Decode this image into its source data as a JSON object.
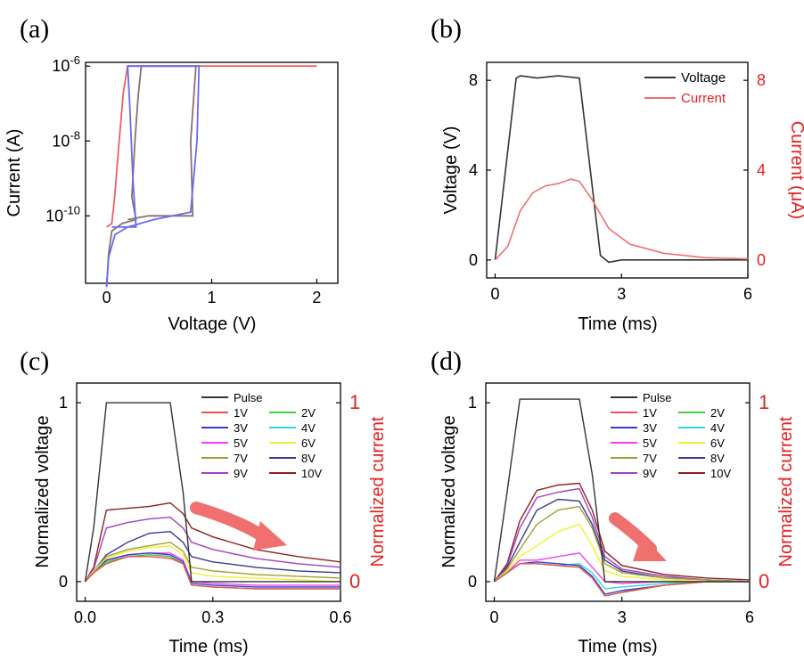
{
  "chart_data": [
    {
      "id": "a",
      "panel_label": "(a)",
      "type": "line",
      "xlabel": "Voltage (V)",
      "ylabel": "Current (A)",
      "xlim": [
        -0.2,
        2.2
      ],
      "ylim_log10": [
        -11.8,
        -5.9
      ],
      "yscale": "log",
      "xticks": [
        "0",
        "1",
        "2"
      ],
      "yticks": [
        {
          "base": "10",
          "exp": "-6",
          "log": -6
        },
        {
          "base": "10",
          "exp": "-8",
          "log": -8
        },
        {
          "base": "10",
          "exp": "-10",
          "log": -10
        }
      ],
      "series": [
        {
          "color": "#f06060",
          "points": [
            [
              0.0,
              -10.3
            ],
            [
              0.05,
              -10.2
            ],
            [
              0.08,
              -9.4
            ],
            [
              0.12,
              -8.0
            ],
            [
              0.16,
              -6.7
            ],
            [
              0.2,
              -6.0
            ],
            [
              2.0,
              -6.0
            ]
          ]
        },
        {
          "color": "#8a7070",
          "points": [
            [
              0.0,
              -11.9
            ],
            [
              0.02,
              -11.0
            ],
            [
              0.05,
              -10.4
            ],
            [
              0.15,
              -10.2
            ],
            [
              0.28,
              -10.1
            ],
            [
              0.24,
              -9.5
            ],
            [
              0.27,
              -8.0
            ],
            [
              0.3,
              -6.8
            ],
            [
              0.33,
              -6.0
            ],
            [
              0.85,
              -6.0
            ],
            [
              0.8,
              -8.0
            ],
            [
              0.82,
              -10.0
            ],
            [
              0.4,
              -10.0
            ],
            [
              0.2,
              -10.1
            ]
          ]
        },
        {
          "color": "#6a6af0",
          "points": [
            [
              0.0,
              -11.9
            ],
            [
              0.02,
              -11.1
            ],
            [
              0.08,
              -10.5
            ],
            [
              0.2,
              -10.3
            ],
            [
              0.45,
              -10.1
            ],
            [
              0.8,
              -9.9
            ],
            [
              0.86,
              -8.0
            ],
            [
              0.88,
              -6.0
            ],
            [
              0.2,
              -6.0
            ],
            [
              0.22,
              -7.0
            ],
            [
              0.25,
              -9.0
            ],
            [
              0.28,
              -10.3
            ],
            [
              0.05,
              -10.3
            ]
          ]
        }
      ]
    },
    {
      "id": "b",
      "panel_label": "(b)",
      "type": "line",
      "xlabel": "Time (ms)",
      "ylabel": "Voltage (V)",
      "ylabel_right": "Current (μA)",
      "xlim": [
        -0.2,
        6.0
      ],
      "ylim": [
        -0.8,
        8.8
      ],
      "xticks": [
        "0",
        "3",
        "6"
      ],
      "yticks": [
        "0",
        "4",
        "8"
      ],
      "yticks_right": [
        "0",
        "4",
        "8"
      ],
      "series": [
        {
          "name": "Voltage",
          "color": "#333333",
          "x": [
            0,
            0.5,
            0.6,
            1.0,
            1.5,
            2.0,
            2.5,
            2.7,
            3.0,
            4.0,
            5.0,
            6.0
          ],
          "y": [
            0,
            8.1,
            8.2,
            8.1,
            8.2,
            8.1,
            0.2,
            -0.1,
            0,
            0,
            0,
            0
          ]
        },
        {
          "name": "Current",
          "color": "#f07070",
          "x": [
            0,
            0.3,
            0.6,
            0.9,
            1.2,
            1.5,
            1.8,
            2.0,
            2.3,
            2.7,
            3.2,
            4.0,
            5.0,
            6.0
          ],
          "y": [
            0,
            0.6,
            2.2,
            3.0,
            3.3,
            3.4,
            3.6,
            3.5,
            2.7,
            1.4,
            0.7,
            0.3,
            0.1,
            0.05
          ]
        }
      ]
    },
    {
      "id": "c",
      "panel_label": "(c)",
      "type": "line",
      "xlabel": "Time (ms)",
      "ylabel": "Normalized voltage",
      "ylabel_right": "Normalized current",
      "xlim": [
        -0.02,
        0.6
      ],
      "ylim": [
        -0.11,
        1.11
      ],
      "xticks": [
        "0.0",
        "0.3",
        "0.6"
      ],
      "yticks": [
        "0",
        "1"
      ],
      "yticks_right": [
        "0",
        "1"
      ],
      "x": [
        0.0,
        0.02,
        0.05,
        0.1,
        0.15,
        0.2,
        0.23,
        0.25,
        0.3,
        0.4,
        0.5,
        0.6
      ],
      "series": [
        {
          "name": "Pulse",
          "color": "#333333",
          "y": [
            0,
            0.3,
            1.0,
            1.0,
            1.0,
            1.0,
            0.5,
            0,
            0,
            0,
            0,
            0
          ]
        },
        {
          "name": "1V",
          "color": "#f05050",
          "y": [
            0,
            0.05,
            0.1,
            0.14,
            0.14,
            0.13,
            0.1,
            -0.02,
            -0.03,
            -0.04,
            -0.04,
            -0.04
          ]
        },
        {
          "name": "2V",
          "color": "#40d040",
          "y": [
            0,
            0.05,
            0.11,
            0.14,
            0.15,
            0.14,
            0.1,
            -0.02,
            -0.03,
            -0.04,
            -0.04,
            -0.04
          ]
        },
        {
          "name": "3V",
          "color": "#3a3ad0",
          "y": [
            0,
            0.05,
            0.12,
            0.15,
            0.16,
            0.15,
            0.11,
            -0.01,
            -0.02,
            -0.03,
            -0.03,
            -0.03
          ]
        },
        {
          "name": "4V",
          "color": "#30d8d8",
          "y": [
            0,
            0.05,
            0.11,
            0.14,
            0.15,
            0.14,
            0.1,
            -0.02,
            -0.03,
            -0.04,
            -0.04,
            -0.04
          ]
        },
        {
          "name": "5V",
          "color": "#f040f0",
          "y": [
            0,
            0.05,
            0.12,
            0.15,
            0.16,
            0.16,
            0.12,
            0.0,
            -0.01,
            -0.02,
            -0.02,
            -0.02
          ]
        },
        {
          "name": "6V",
          "color": "#f0f030",
          "y": [
            0,
            0.06,
            0.13,
            0.17,
            0.19,
            0.2,
            0.15,
            0.05,
            0.03,
            0.02,
            0.01,
            0.0
          ]
        },
        {
          "name": "7V",
          "color": "#a0a030",
          "y": [
            0,
            0.06,
            0.14,
            0.18,
            0.2,
            0.22,
            0.17,
            0.08,
            0.06,
            0.04,
            0.03,
            0.02
          ]
        },
        {
          "name": "8V",
          "color": "#3a3a90",
          "y": [
            0,
            0.06,
            0.15,
            0.22,
            0.27,
            0.28,
            0.22,
            0.14,
            0.11,
            0.08,
            0.06,
            0.05
          ]
        },
        {
          "name": "9V",
          "color": "#a040c0",
          "y": [
            0,
            0.07,
            0.3,
            0.33,
            0.35,
            0.36,
            0.3,
            0.22,
            0.18,
            0.13,
            0.1,
            0.08
          ]
        },
        {
          "name": "10V",
          "color": "#902020",
          "y": [
            0,
            0.08,
            0.4,
            0.41,
            0.42,
            0.44,
            0.38,
            0.3,
            0.25,
            0.18,
            0.14,
            0.11
          ]
        }
      ]
    },
    {
      "id": "d",
      "panel_label": "(d)",
      "type": "line",
      "xlabel": "Time (ms)",
      "ylabel": "Normalized voltage",
      "ylabel_right": "Normalized current",
      "xlim": [
        -0.2,
        6.0
      ],
      "ylim": [
        -0.11,
        1.11
      ],
      "xticks": [
        "0",
        "3",
        "6"
      ],
      "yticks": [
        "0",
        "1"
      ],
      "yticks_right": [
        "0",
        "1"
      ],
      "x": [
        0.0,
        0.3,
        0.6,
        1.0,
        1.5,
        2.0,
        2.3,
        2.6,
        3.0,
        4.0,
        5.0,
        6.0
      ],
      "series": [
        {
          "name": "Pulse",
          "color": "#333333",
          "y": [
            0,
            0.5,
            1.02,
            1.02,
            1.02,
            1.02,
            0.6,
            0,
            0,
            0,
            0,
            0
          ]
        },
        {
          "name": "1V",
          "color": "#f05050",
          "y": [
            0,
            0.05,
            0.1,
            0.1,
            0.09,
            0.08,
            0.02,
            -0.08,
            -0.06,
            -0.02,
            0,
            0
          ]
        },
        {
          "name": "2V",
          "color": "#40d040",
          "y": [
            0,
            0.05,
            0.1,
            0.1,
            0.09,
            0.08,
            0.02,
            -0.08,
            -0.06,
            -0.02,
            0,
            0
          ]
        },
        {
          "name": "3V",
          "color": "#3a3ad0",
          "y": [
            0,
            0.05,
            0.1,
            0.11,
            0.1,
            0.09,
            0.03,
            -0.07,
            -0.05,
            -0.02,
            0,
            0
          ]
        },
        {
          "name": "4V",
          "color": "#30d8d8",
          "y": [
            0,
            0.05,
            0.1,
            0.1,
            0.09,
            0.1,
            0.05,
            -0.04,
            -0.03,
            -0.01,
            0,
            0
          ]
        },
        {
          "name": "5V",
          "color": "#f040f0",
          "y": [
            0,
            0.05,
            0.12,
            0.12,
            0.14,
            0.16,
            0.08,
            0.0,
            -0.01,
            0,
            0,
            0
          ]
        },
        {
          "name": "6V",
          "color": "#f0f030",
          "y": [
            0,
            0.06,
            0.14,
            0.2,
            0.28,
            0.32,
            0.2,
            0.06,
            0.03,
            0.01,
            0,
            0
          ]
        },
        {
          "name": "7V",
          "color": "#a0a030",
          "y": [
            0,
            0.07,
            0.18,
            0.32,
            0.4,
            0.42,
            0.3,
            0.1,
            0.05,
            0.02,
            0.01,
            0
          ]
        },
        {
          "name": "8V",
          "color": "#3a3a90",
          "y": [
            0,
            0.08,
            0.22,
            0.4,
            0.46,
            0.45,
            0.32,
            0.12,
            0.06,
            0.02,
            0.01,
            0
          ]
        },
        {
          "name": "9V",
          "color": "#a040c0",
          "y": [
            0,
            0.09,
            0.3,
            0.47,
            0.5,
            0.52,
            0.36,
            0.14,
            0.07,
            0.03,
            0.01,
            0
          ]
        },
        {
          "name": "10V",
          "color": "#902020",
          "y": [
            0,
            0.1,
            0.34,
            0.51,
            0.54,
            0.55,
            0.4,
            0.17,
            0.09,
            0.04,
            0.02,
            0.01
          ]
        }
      ]
    }
  ],
  "colors": {
    "axis_right": "#e62020",
    "arrow": "#f07070"
  }
}
